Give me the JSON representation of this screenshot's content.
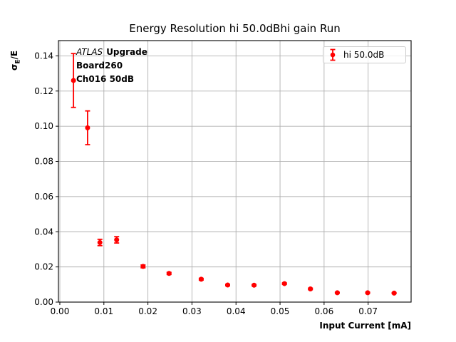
{
  "colors": {
    "series": "#ff0000",
    "grid": "#b0b0b0",
    "spine": "#000000",
    "legend_border": "#cccccc",
    "background": "#ffffff",
    "text": "#000000"
  },
  "chart_data": {
    "type": "scatter",
    "title": "Energy Resolution hi 50.0dBhi gain Run",
    "xlabel": "Input Current [mA]",
    "ylabel": "σE/E",
    "ylabel_parts": {
      "sigma": "σ",
      "subscript": "E",
      "rest": "/E"
    },
    "grid": true,
    "legend": {
      "label": "hi 50.0dB",
      "position": "upper right"
    },
    "annotation": {
      "experiment": "ATLAS",
      "tag": "Upgrade",
      "line2": "Board260",
      "line3": "Ch016 50dB"
    },
    "xlim": [
      -0.00032,
      0.07976
    ],
    "ylim": [
      0.0,
      0.14867
    ],
    "xticks": [
      {
        "v": 0.0,
        "label": "0.00"
      },
      {
        "v": 0.01,
        "label": "0.01"
      },
      {
        "v": 0.02,
        "label": "0.02"
      },
      {
        "v": 0.03,
        "label": "0.03"
      },
      {
        "v": 0.04,
        "label": "0.04"
      },
      {
        "v": 0.05,
        "label": "0.05"
      },
      {
        "v": 0.06,
        "label": "0.06"
      },
      {
        "v": 0.07,
        "label": "0.07"
      }
    ],
    "yticks": [
      {
        "v": 0.0,
        "label": "0.00"
      },
      {
        "v": 0.02,
        "label": "0.02"
      },
      {
        "v": 0.04,
        "label": "0.04"
      },
      {
        "v": 0.06,
        "label": "0.06"
      },
      {
        "v": 0.08,
        "label": "0.08"
      },
      {
        "v": 0.1,
        "label": "0.10"
      },
      {
        "v": 0.12,
        "label": "0.12"
      },
      {
        "v": 0.14,
        "label": "0.14"
      }
    ],
    "series": [
      {
        "name": "hi 50.0dB",
        "color": "#ff0000",
        "marker": "circle",
        "points": [
          {
            "x": 0.0031,
            "y": 0.126,
            "yerr": 0.0153
          },
          {
            "x": 0.0063,
            "y": 0.0991,
            "yerr": 0.0096
          },
          {
            "x": 0.0091,
            "y": 0.0339,
            "yerr": 0.0018
          },
          {
            "x": 0.0129,
            "y": 0.0354,
            "yerr": 0.0018
          },
          {
            "x": 0.0189,
            "y": 0.0203,
            "yerr": 0.0008
          },
          {
            "x": 0.0248,
            "y": 0.0163,
            "yerr": 0.0006
          },
          {
            "x": 0.0321,
            "y": 0.013,
            "yerr": 0.0005
          },
          {
            "x": 0.0381,
            "y": 0.0097,
            "yerr": 0.0004
          },
          {
            "x": 0.0441,
            "y": 0.0096,
            "yerr": 0.0004
          },
          {
            "x": 0.051,
            "y": 0.0105,
            "yerr": 0.0004
          },
          {
            "x": 0.0569,
            "y": 0.0075,
            "yerr": 0.0004
          },
          {
            "x": 0.063,
            "y": 0.0053,
            "yerr": 0.0003
          },
          {
            "x": 0.0699,
            "y": 0.0053,
            "yerr": 0.0003
          },
          {
            "x": 0.0759,
            "y": 0.0051,
            "yerr": 0.0003
          }
        ]
      }
    ]
  }
}
